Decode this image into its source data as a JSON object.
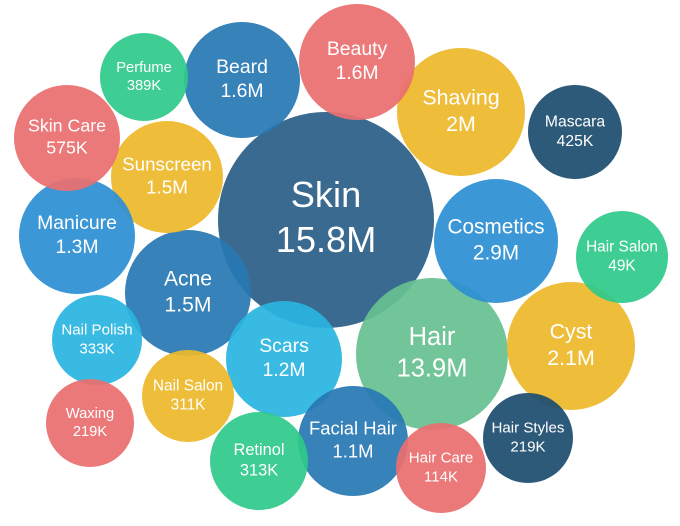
{
  "colors": {
    "navy": "#2b5f86",
    "blue": "#2d8fd3",
    "royal": "#2878b4",
    "cyan": "#2ab5e0",
    "yellow": "#edb82b",
    "red": "#ea6f70",
    "green": "#2fc98a",
    "seafoam": "#66c191",
    "darknavy": "#1e4e70"
  },
  "chart_data": {
    "type": "bubble",
    "title": "",
    "bubbles": [
      {
        "label": "Skin",
        "value_label": "15.8M",
        "value": 15800000,
        "color": "navy"
      },
      {
        "label": "Hair",
        "value_label": "13.9M",
        "value": 13900000,
        "color": "seafoam"
      },
      {
        "label": "Cosmetics",
        "value_label": "2.9M",
        "value": 2900000,
        "color": "blue"
      },
      {
        "label": "Cyst",
        "value_label": "2.1M",
        "value": 2100000,
        "color": "yellow"
      },
      {
        "label": "Shaving",
        "value_label": "2M",
        "value": 2000000,
        "color": "yellow"
      },
      {
        "label": "Beard",
        "value_label": "1.6M",
        "value": 1600000,
        "color": "royal"
      },
      {
        "label": "Beauty",
        "value_label": "1.6M",
        "value": 1600000,
        "color": "red"
      },
      {
        "label": "Acne",
        "value_label": "1.5M",
        "value": 1500000,
        "color": "royal"
      },
      {
        "label": "Sunscreen",
        "value_label": "1.5M",
        "value": 1500000,
        "color": "yellow"
      },
      {
        "label": "Manicure",
        "value_label": "1.3M",
        "value": 1300000,
        "color": "blue"
      },
      {
        "label": "Scars",
        "value_label": "1.2M",
        "value": 1200000,
        "color": "cyan"
      },
      {
        "label": "Facial Hair",
        "value_label": "1.1M",
        "value": 1100000,
        "color": "royal"
      },
      {
        "label": "Skin Care",
        "value_label": "575K",
        "value": 575000,
        "color": "red"
      },
      {
        "label": "Mascara",
        "value_label": "425K",
        "value": 425000,
        "color": "darknavy"
      },
      {
        "label": "Perfume",
        "value_label": "389K",
        "value": 389000,
        "color": "green"
      },
      {
        "label": "Nail Polish",
        "value_label": "333K",
        "value": 333000,
        "color": "cyan"
      },
      {
        "label": "Retinol",
        "value_label": "313K",
        "value": 313000,
        "color": "green"
      },
      {
        "label": "Nail Salon",
        "value_label": "311K",
        "value": 311000,
        "color": "yellow"
      },
      {
        "label": "Waxing",
        "value_label": "219K",
        "value": 219000,
        "color": "red"
      },
      {
        "label": "Hair Styles",
        "value_label": "219K",
        "value": 219000,
        "color": "darknavy"
      },
      {
        "label": "Hair Care",
        "value_label": "114K",
        "value": 114000,
        "color": "red"
      },
      {
        "label": "Hair Salon",
        "value_label": "49K",
        "value": 49000,
        "color": "green"
      }
    ]
  }
}
